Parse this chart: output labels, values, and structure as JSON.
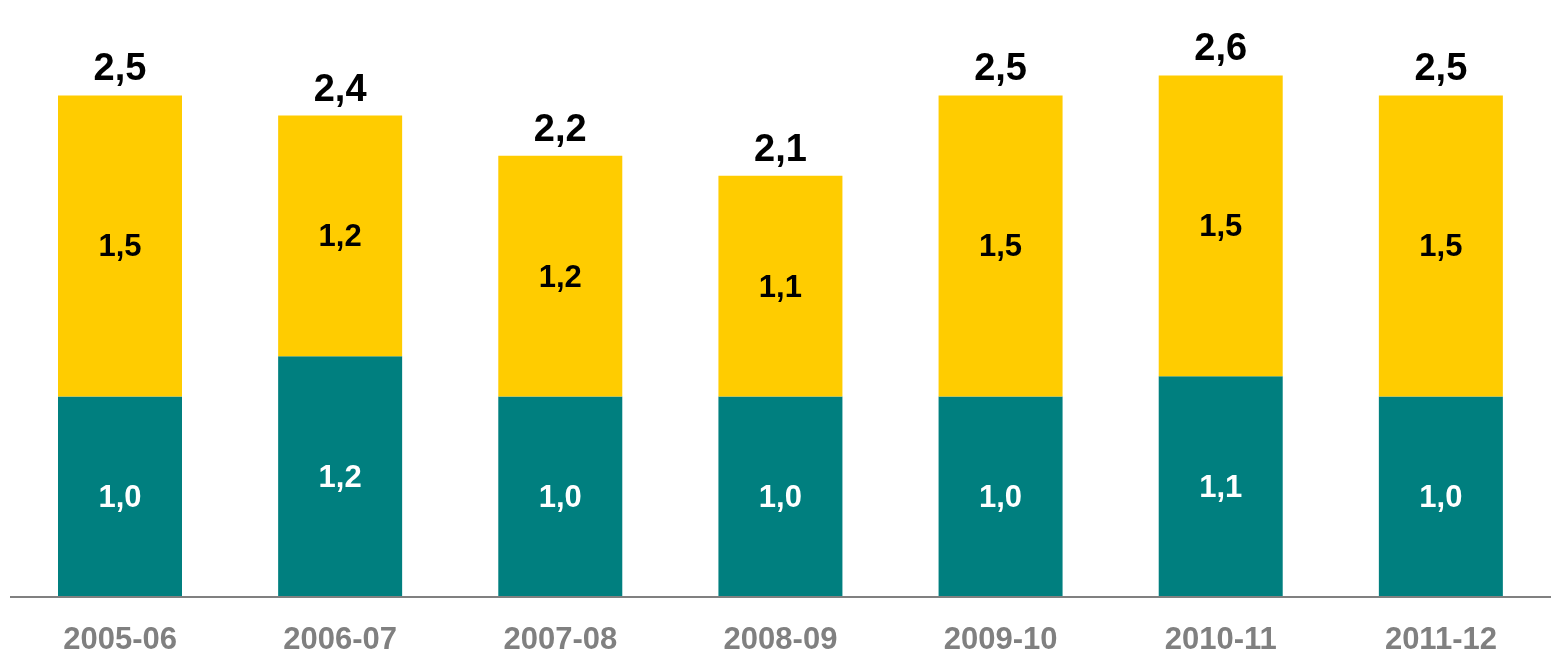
{
  "chart_data": {
    "type": "bar",
    "stacked": true,
    "categories": [
      "2005-06",
      "2006-07",
      "2007-08",
      "2008-09",
      "2009-10",
      "2010-11",
      "2011-12"
    ],
    "series": [
      {
        "color": "#007f7f",
        "values": [
          1.0,
          1.2,
          1.0,
          1.0,
          1.0,
          1.1,
          1.0
        ],
        "value_labels": [
          "1,0",
          "1,2",
          "1,0",
          "1,0",
          "1,0",
          "1,1",
          "1,0"
        ]
      },
      {
        "color": "#ffcc00",
        "values": [
          1.5,
          1.2,
          1.2,
          1.1,
          1.5,
          1.5,
          1.5
        ],
        "value_labels": [
          "1,5",
          "1,2",
          "1,2",
          "1,1",
          "1,5",
          "1,5",
          "1,5"
        ]
      }
    ],
    "totals": [
      "2,5",
      "2,4",
      "2,2",
      "2,1",
      "2,5",
      "2,6",
      "2,5"
    ],
    "grid": false,
    "legend": false
  }
}
